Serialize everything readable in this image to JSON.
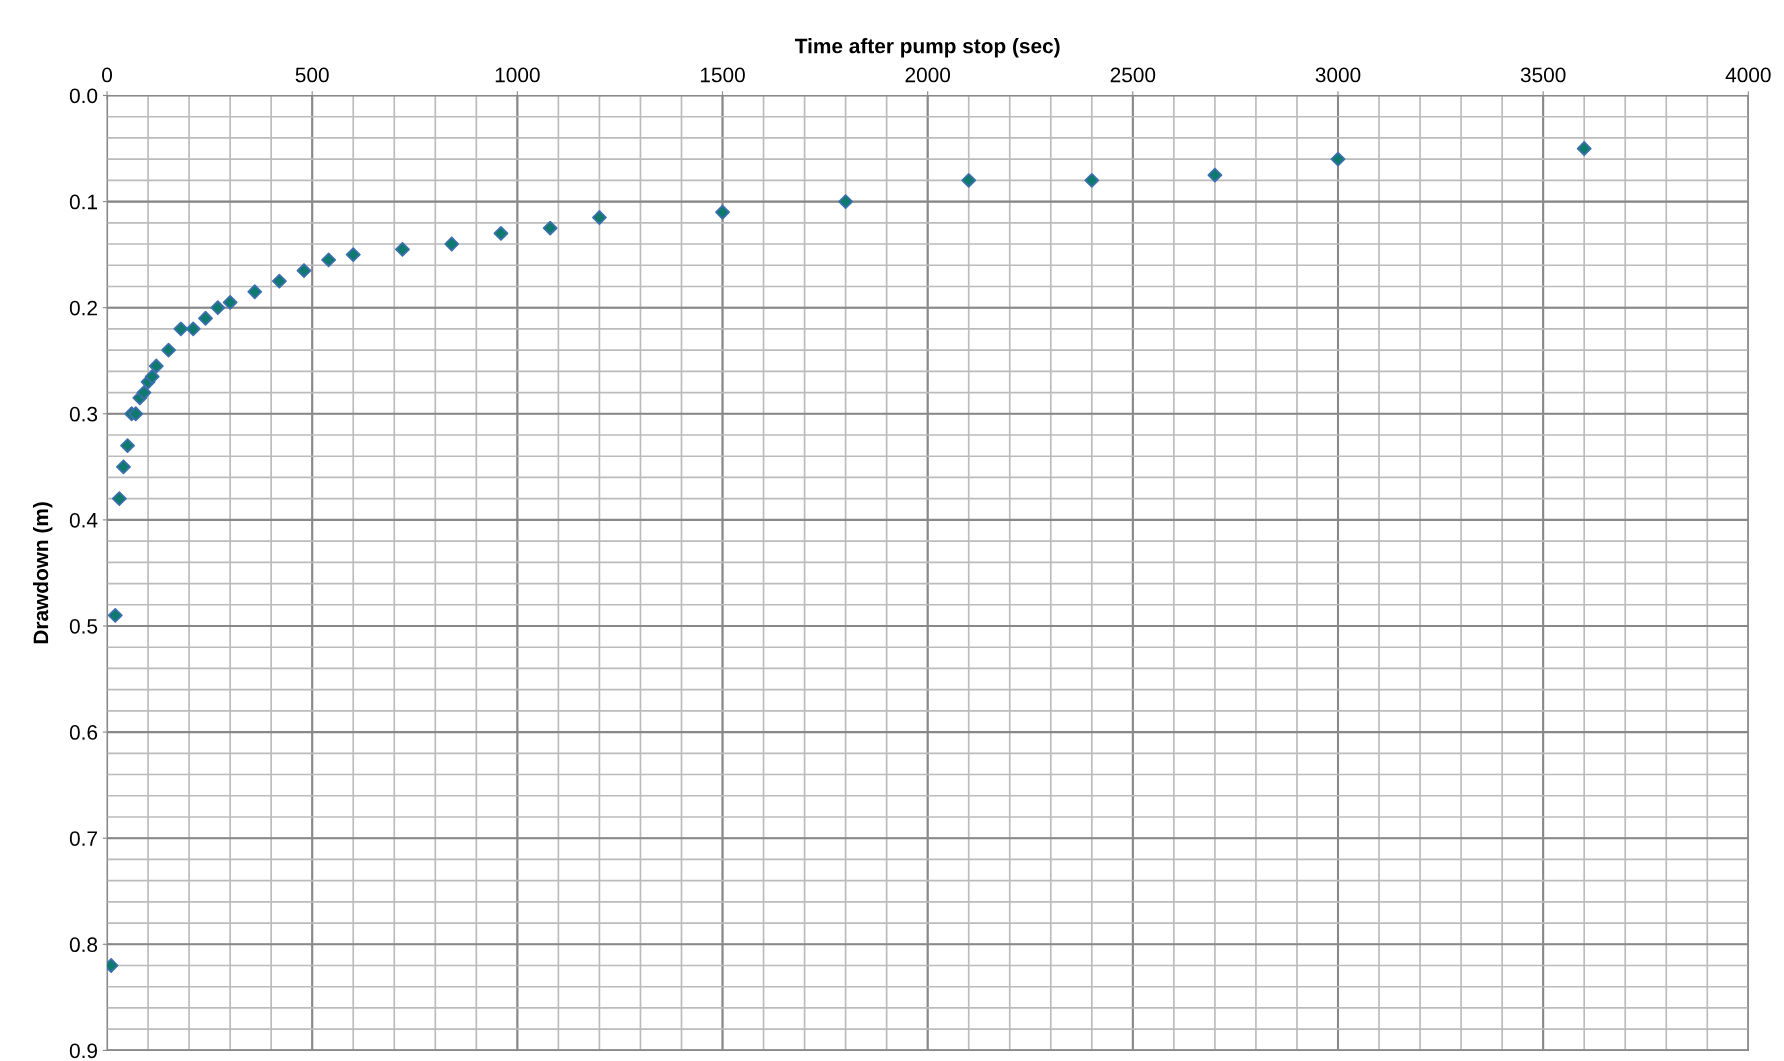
{
  "chart_data": {
    "type": "scatter",
    "xlabel": "Time after pump stop (sec)",
    "ylabel": "Drawdown (m)",
    "x": [
      10,
      20,
      30,
      40,
      50,
      60,
      70,
      80,
      90,
      100,
      110,
      120,
      150,
      180,
      210,
      240,
      270,
      300,
      360,
      420,
      480,
      540,
      600,
      720,
      840,
      960,
      1080,
      1200,
      1500,
      1800,
      2100,
      2400,
      2700,
      3000,
      3600
    ],
    "series": [
      {
        "color": "#0e7a6e",
        "values": [
          0.82,
          0.49,
          0.38,
          0.35,
          0.33,
          0.3,
          0.3,
          0.285,
          0.28,
          0.27,
          0.265,
          0.255,
          0.24,
          0.22,
          0.22,
          0.21,
          0.2,
          0.195,
          0.185,
          0.175,
          0.165,
          0.155,
          0.15,
          0.145,
          0.14,
          0.13,
          0.125,
          0.115,
          0.11,
          0.1,
          0.08,
          0.08,
          0.075,
          0.06,
          0.05
        ]
      }
    ],
    "marker": "diamond",
    "grid": true,
    "xlim": [
      0,
      4000
    ],
    "xticks": [
      0,
      500,
      1000,
      1500,
      2000,
      2500,
      3000,
      3500,
      4000
    ],
    "ylim": [
      0.9,
      0.0
    ],
    "yticks": [
      {
        "value": 0,
        "label": "0.0"
      },
      0.1,
      0.2,
      0.3,
      0.4,
      0.5,
      0.6,
      0.7,
      0.8,
      0.9
    ]
  }
}
